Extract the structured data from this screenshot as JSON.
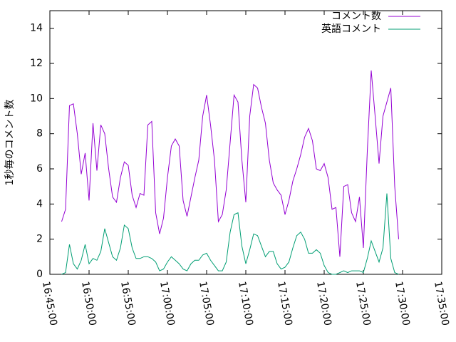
{
  "chart_data": {
    "type": "line",
    "ylabel": "1秒毎のコメント数",
    "x": [
      "16:46:30",
      "16:47:00",
      "16:47:30",
      "16:48:00",
      "16:48:30",
      "16:49:00",
      "16:49:30",
      "16:50:00",
      "16:50:30",
      "16:51:00",
      "16:51:30",
      "16:52:00",
      "16:52:30",
      "16:53:00",
      "16:53:30",
      "16:54:00",
      "16:54:30",
      "16:55:00",
      "16:55:30",
      "16:56:00",
      "16:56:30",
      "16:57:00",
      "16:57:30",
      "16:58:00",
      "16:58:30",
      "16:59:00",
      "16:59:30",
      "17:00:00",
      "17:00:30",
      "17:01:00",
      "17:01:30",
      "17:02:00",
      "17:02:30",
      "17:03:00",
      "17:03:30",
      "17:04:00",
      "17:04:30",
      "17:05:00",
      "17:05:30",
      "17:06:00",
      "17:06:30",
      "17:07:00",
      "17:07:30",
      "17:08:00",
      "17:08:30",
      "17:09:00",
      "17:09:30",
      "17:10:00",
      "17:10:30",
      "17:11:00",
      "17:11:30",
      "17:12:00",
      "17:12:30",
      "17:13:00",
      "17:13:30",
      "17:14:00",
      "17:14:30",
      "17:15:00",
      "17:15:30",
      "17:16:00",
      "17:16:30",
      "17:17:00",
      "17:17:30",
      "17:18:00",
      "17:18:30",
      "17:19:00",
      "17:19:30",
      "17:20:00",
      "17:20:30",
      "17:21:00",
      "17:21:30",
      "17:22:00",
      "17:22:30",
      "17:23:00",
      "17:23:30",
      "17:24:00",
      "17:24:30",
      "17:25:00",
      "17:25:30",
      "17:26:00",
      "17:26:30",
      "17:27:00",
      "17:27:30",
      "17:28:00",
      "17:28:30",
      "17:29:00",
      "17:29:30"
    ],
    "series": [
      {
        "name": "コメント数",
        "color": "#9400d3",
        "values": [
          3.0,
          3.7,
          9.6,
          9.7,
          8.0,
          5.7,
          6.9,
          4.2,
          8.6,
          5.9,
          8.5,
          8.0,
          6.0,
          4.4,
          4.1,
          5.5,
          6.4,
          6.2,
          4.5,
          3.8,
          4.6,
          4.5,
          8.5,
          8.7,
          3.5,
          2.3,
          3.2,
          5.5,
          7.3,
          7.7,
          7.3,
          4.2,
          3.3,
          4.4,
          5.5,
          6.5,
          9.0,
          10.2,
          8.5,
          6.5,
          3.0,
          3.4,
          4.8,
          7.5,
          10.2,
          9.8,
          6.5,
          4.1,
          9.0,
          10.8,
          10.6,
          9.5,
          8.6,
          6.5,
          5.2,
          4.8,
          4.5,
          3.4,
          4.2,
          5.3,
          6.0,
          6.8,
          7.8,
          8.3,
          7.6,
          6.0,
          5.9,
          6.3,
          5.5,
          3.7,
          3.8,
          1.0,
          5.0,
          5.1,
          3.5,
          3.0,
          4.4,
          1.5,
          7.0,
          11.6,
          9.0,
          6.3,
          9.0,
          9.8,
          10.6,
          5.0,
          2.0
        ]
      },
      {
        "name": "英語コメント",
        "color": "#009e73",
        "values": [
          0.0,
          0.1,
          1.7,
          0.6,
          0.3,
          0.8,
          1.7,
          0.6,
          0.9,
          0.8,
          1.3,
          2.6,
          1.8,
          1.0,
          0.8,
          1.5,
          2.8,
          2.6,
          1.5,
          0.9,
          0.9,
          1.0,
          1.0,
          0.9,
          0.7,
          0.2,
          0.3,
          0.7,
          1.0,
          0.8,
          0.6,
          0.3,
          0.2,
          0.6,
          0.8,
          0.8,
          1.1,
          1.2,
          0.8,
          0.5,
          0.2,
          0.2,
          0.7,
          2.4,
          3.4,
          3.5,
          1.6,
          0.6,
          1.4,
          2.3,
          2.2,
          1.6,
          1.0,
          1.3,
          1.3,
          0.6,
          0.3,
          0.4,
          0.7,
          1.5,
          2.2,
          2.4,
          2.0,
          1.2,
          1.2,
          1.4,
          1.2,
          0.5,
          0.1,
          0.0,
          0.0,
          0.1,
          0.2,
          0.1,
          0.2,
          0.2,
          0.2,
          0.1,
          0.9,
          1.9,
          1.3,
          0.7,
          1.5,
          4.6,
          0.9,
          0.1,
          0.0
        ]
      }
    ],
    "xlim": [
      "16:45:00",
      "17:35:00"
    ],
    "xticks": [
      "16:45:00",
      "16:50:00",
      "16:55:00",
      "17:00:00",
      "17:05:00",
      "17:10:00",
      "17:15:00",
      "17:20:00",
      "17:25:00",
      "17:30:00",
      "17:35:00"
    ],
    "ylim": [
      0,
      15
    ],
    "yticks": [
      0,
      2,
      4,
      6,
      8,
      10,
      12,
      14
    ],
    "grid": false,
    "legend": "top-right"
  }
}
